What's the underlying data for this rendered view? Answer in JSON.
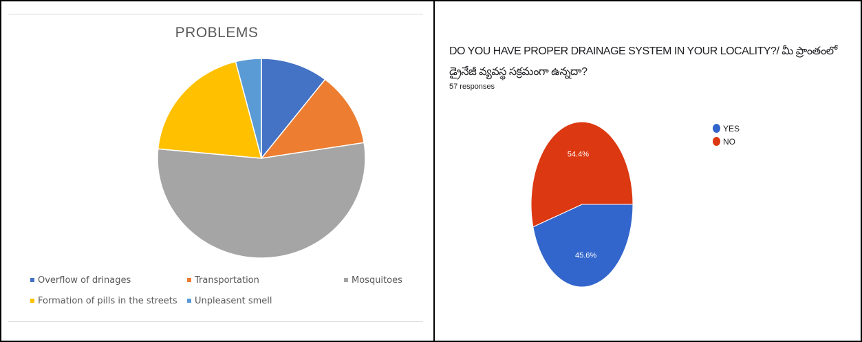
{
  "chart_data": [
    {
      "type": "pie",
      "title": "PROBLEMS",
      "categories": [
        "Overflow of drinages",
        "Transportation",
        "Mosquitoes",
        "Formation of pills in the streets",
        "Unpleasent smell"
      ],
      "values": [
        10.5,
        12,
        54,
        19.5,
        4
      ],
      "colors": [
        "#4472C4",
        "#ED7D31",
        "#A5A5A5",
        "#FFC000",
        "#5B9BD5"
      ],
      "legend_position": "bottom"
    },
    {
      "type": "pie",
      "title": "DO YOU HAVE PROPER DRAINAGE SYSTEM IN YOUR LOCALITY?/ మీ ప్రాంతంలో డ్రైనేజీ వ్యవస్థ సక్రమంగా ఉన్నదా?",
      "subtitle": "57 responses",
      "categories": [
        "YES",
        "NO"
      ],
      "values": [
        45.6,
        54.4
      ],
      "labels": [
        "45.6%",
        "54.4%"
      ],
      "colors": [
        "#3366CC",
        "#DC3912"
      ],
      "legend_position": "right"
    }
  ]
}
